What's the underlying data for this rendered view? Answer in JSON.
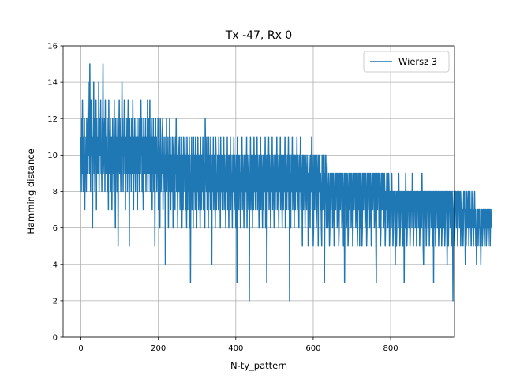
{
  "chart_data": {
    "type": "line",
    "title": "Tx -47, Rx 0",
    "xlabel": "N-ty_pattern",
    "ylabel": "Hamming distance",
    "xlim": [
      -46,
      965
    ],
    "ylim": [
      0,
      16
    ],
    "xticks": [
      0,
      200,
      400,
      600,
      800
    ],
    "yticks": [
      0,
      2,
      4,
      6,
      8,
      10,
      12,
      14,
      16
    ],
    "grid": true,
    "legend_position": "top-right",
    "series": [
      {
        "name": "Wiersz 3",
        "color": "#1f77b4",
        "x_start": 0,
        "x_step": 1,
        "values": [
          11,
          8,
          12,
          9,
          13,
          10,
          8,
          11,
          9,
          12,
          7,
          10,
          9,
          11,
          8,
          12,
          10,
          9,
          11,
          14,
          10,
          12,
          9,
          15,
          11,
          8,
          13,
          10,
          12,
          9,
          6,
          11,
          10,
          14,
          9,
          12,
          8,
          11,
          10,
          13,
          7,
          12,
          9,
          10,
          11,
          9,
          14,
          8,
          12,
          10,
          11,
          13,
          9,
          10,
          8,
          12,
          11,
          15,
          9,
          10,
          11,
          12,
          8,
          13,
          10,
          9,
          11,
          10,
          12,
          8,
          10,
          7,
          13,
          9,
          11,
          10,
          12,
          9,
          8,
          11,
          7,
          10,
          12,
          9,
          11,
          8,
          13,
          10,
          9,
          6,
          12,
          10,
          11,
          8,
          9,
          12,
          5,
          10,
          11,
          13,
          9,
          12,
          10,
          8,
          11,
          9,
          14,
          10,
          12,
          8,
          11,
          9,
          13,
          10,
          12,
          7,
          11,
          9,
          10,
          12,
          8,
          11,
          13,
          9,
          10,
          5,
          12,
          9,
          11,
          10,
          8,
          12,
          11,
          9,
          13,
          10,
          7,
          11,
          9,
          12,
          10,
          8,
          11,
          10,
          9,
          12,
          7,
          10,
          11,
          9,
          12,
          8,
          10,
          11,
          9,
          13,
          10,
          12,
          8,
          11,
          9,
          7,
          12,
          10,
          11,
          9,
          10,
          12,
          8,
          11,
          10,
          9,
          13,
          8,
          11,
          12,
          9,
          10,
          13,
          8,
          11,
          9,
          12,
          10,
          7,
          11,
          9,
          12,
          8,
          10,
          11,
          5,
          10,
          12,
          9,
          11,
          8,
          10,
          9,
          12,
          7,
          11,
          10,
          9,
          6,
          12,
          11,
          8,
          10,
          9,
          11,
          12,
          7,
          10,
          9,
          11,
          8,
          10,
          4,
          11,
          9,
          12,
          8,
          10,
          9,
          11,
          6,
          10,
          8,
          12,
          9,
          11,
          7,
          10,
          9,
          8,
          11,
          10,
          6,
          9,
          11,
          8,
          10,
          7,
          11,
          9,
          12,
          8,
          10,
          9,
          6,
          11,
          10,
          8,
          9,
          11,
          7,
          10,
          8,
          9,
          11,
          6,
          10,
          9,
          7,
          11,
          8,
          10,
          9,
          11,
          7,
          10,
          8,
          6,
          11,
          9,
          7,
          10,
          8,
          9,
          11,
          6,
          10,
          3,
          9,
          8,
          11,
          7,
          10,
          9,
          6,
          11,
          8,
          10,
          9,
          7,
          11,
          8,
          9,
          6,
          10,
          8,
          11,
          9,
          7,
          10,
          9,
          8,
          6,
          11,
          9,
          7,
          10,
          8,
          9,
          11,
          7,
          10,
          9,
          8,
          6,
          12,
          10,
          9,
          8,
          11,
          7,
          10,
          9,
          6,
          11,
          9,
          8,
          10,
          7,
          11,
          9,
          8,
          4,
          10,
          9,
          8,
          11,
          7,
          10,
          9,
          8,
          6,
          11,
          10,
          7,
          9,
          8,
          10,
          9,
          7,
          11,
          8,
          10,
          9,
          6,
          11,
          8,
          10,
          9,
          7,
          10,
          8,
          9,
          11,
          7,
          10,
          9,
          8,
          6,
          10,
          9,
          8,
          11,
          7,
          10,
          9,
          6,
          10,
          8,
          9,
          11,
          7,
          10,
          8,
          9,
          6,
          10,
          9,
          8,
          11,
          7,
          10,
          9,
          8,
          6,
          10,
          9,
          3,
          11,
          8,
          10,
          9,
          7,
          10,
          8,
          9,
          6,
          10,
          9,
          8,
          11,
          7,
          10,
          9,
          8,
          6,
          10,
          9,
          7,
          10,
          8,
          9,
          11,
          6,
          10,
          9,
          8,
          7,
          10,
          2,
          9,
          8,
          11,
          7,
          10,
          9,
          8,
          6,
          10,
          9,
          7,
          11,
          8,
          10,
          9,
          7,
          10,
          8,
          9,
          11,
          7,
          10,
          9,
          8,
          6,
          10,
          9,
          8,
          11,
          7,
          10,
          9,
          8,
          6,
          10,
          9,
          7,
          10,
          8,
          9,
          11,
          6,
          10,
          9,
          3,
          7,
          10,
          8,
          9,
          11,
          7,
          10,
          9,
          8,
          6,
          10,
          9,
          8,
          11,
          7,
          10,
          9,
          8,
          6,
          10,
          9,
          7,
          10,
          8,
          9,
          11,
          7,
          10,
          9,
          8,
          6,
          10,
          9,
          8,
          11,
          7,
          10,
          9,
          8,
          6,
          10,
          9,
          7,
          10,
          8,
          9,
          11,
          6,
          10,
          9,
          8,
          7,
          10,
          8,
          9,
          11,
          7,
          10,
          2,
          9,
          8,
          6,
          10,
          9,
          8,
          11,
          7,
          10,
          9,
          8,
          6,
          10,
          9,
          7,
          10,
          8,
          9,
          11,
          7,
          10,
          9,
          8,
          6,
          10,
          9,
          8,
          11,
          7,
          10,
          9,
          8,
          5,
          10,
          9,
          7,
          10,
          8,
          9,
          6,
          10,
          9,
          8,
          7,
          10,
          8,
          9,
          5,
          7,
          10,
          9,
          8,
          6,
          10,
          9,
          8,
          11,
          7,
          10,
          9,
          5,
          6,
          10,
          9,
          7,
          10,
          8,
          9,
          6,
          7,
          10,
          9,
          8,
          5,
          10,
          9,
          8,
          10,
          7,
          9,
          8,
          6,
          5,
          10,
          9,
          7,
          10,
          8,
          9,
          3,
          7,
          10,
          9,
          8,
          6,
          10,
          9,
          8,
          6,
          7,
          9,
          8,
          5,
          6,
          9,
          8,
          7,
          9,
          8,
          9,
          6,
          7,
          9,
          8,
          5,
          6,
          9,
          8,
          7,
          9,
          8,
          9,
          6,
          7,
          9,
          8,
          5,
          6,
          9,
          8,
          7,
          9,
          8,
          9,
          6,
          7,
          9,
          8,
          5,
          6,
          9,
          3,
          7,
          9,
          8,
          9,
          6,
          7,
          9,
          8,
          5,
          6,
          9,
          8,
          7,
          9,
          8,
          9,
          6,
          7,
          9,
          8,
          5,
          6,
          9,
          8,
          7,
          9,
          8,
          9,
          6,
          7,
          9,
          8,
          5,
          6,
          9,
          8,
          7,
          9,
          5,
          9,
          6,
          7,
          9,
          8,
          5,
          6,
          9,
          8,
          7,
          9,
          8,
          9,
          6,
          7,
          9,
          8,
          5,
          6,
          9,
          8,
          7,
          9,
          8,
          9,
          6,
          7,
          9,
          8,
          5,
          6,
          9,
          8,
          7,
          9,
          8,
          9,
          6,
          7,
          9,
          8,
          5,
          3,
          9,
          8,
          7,
          9,
          8,
          9,
          6,
          7,
          9,
          8,
          5,
          6,
          9,
          8,
          7,
          9,
          8,
          9,
          6,
          7,
          9,
          8,
          5,
          6,
          8,
          7,
          9,
          8,
          9,
          6,
          7,
          9,
          8,
          5,
          6,
          8,
          7,
          8,
          6,
          9,
          7,
          8,
          5,
          6,
          8,
          7,
          8,
          6,
          4,
          7,
          8,
          5,
          6,
          8,
          7,
          8,
          6,
          9,
          7,
          8,
          5,
          6,
          8,
          7,
          8,
          6,
          7,
          8,
          5,
          6,
          8,
          3,
          7,
          8,
          6,
          9,
          7,
          8,
          5,
          6,
          8,
          7,
          8,
          6,
          7,
          8,
          5,
          6,
          8,
          7,
          8,
          6,
          9,
          7,
          8,
          5,
          6,
          8,
          7,
          8,
          6,
          7,
          8,
          5,
          6,
          8,
          7,
          8,
          6,
          7,
          8,
          5,
          6,
          8,
          7,
          8,
          6,
          9,
          7,
          8,
          5,
          4,
          8,
          7,
          8,
          6,
          7,
          8,
          5,
          6,
          8,
          7,
          8,
          6,
          7,
          8,
          5,
          6,
          8,
          7,
          8,
          6,
          7,
          8,
          5,
          6,
          8,
          3,
          8,
          6,
          7,
          8,
          5,
          6,
          8,
          7,
          8,
          6,
          7,
          8,
          5,
          6,
          8,
          7,
          8,
          6,
          7,
          8,
          5,
          6,
          8,
          7,
          8,
          6,
          7,
          8,
          5,
          6,
          8,
          7,
          8,
          6,
          4,
          7,
          8,
          5,
          6,
          8,
          7,
          8,
          6,
          7,
          8,
          5,
          6,
          8,
          7,
          2,
          6,
          7,
          8,
          5,
          6,
          8,
          7,
          8,
          6,
          7,
          8,
          5,
          6,
          8,
          7,
          8,
          6,
          7,
          8,
          5,
          6,
          7,
          8,
          6,
          7,
          5,
          6,
          8,
          7,
          8,
          6,
          4,
          7,
          5,
          6,
          8,
          7,
          6,
          7,
          8,
          5,
          6,
          7,
          8,
          6,
          7,
          5,
          6,
          8,
          7,
          6,
          7,
          5,
          6,
          7,
          8,
          6,
          7,
          5,
          6,
          4,
          7,
          6,
          7,
          5,
          6,
          7,
          6,
          7,
          5,
          6,
          4,
          7,
          6,
          7,
          5,
          6,
          7,
          6,
          7,
          5,
          6,
          7,
          6,
          7,
          5,
          6,
          7,
          6,
          7,
          5,
          6,
          7,
          6,
          7,
          5,
          6,
          7,
          6
        ]
      }
    ]
  }
}
